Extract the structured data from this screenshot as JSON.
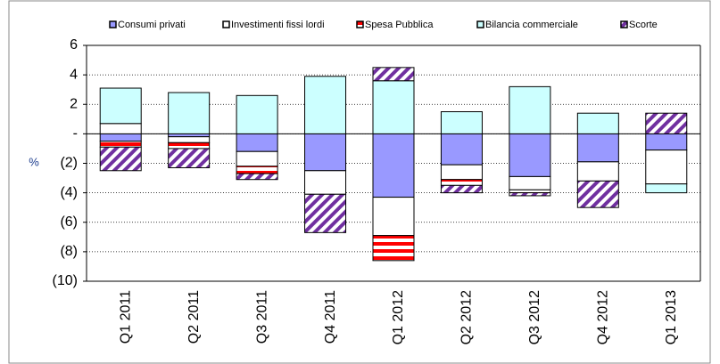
{
  "chart_data": {
    "type": "bar",
    "stacked": true,
    "y_label": "%",
    "categories": [
      "Q1 2011",
      "Q2 2011",
      "Q3 2011",
      "Q4 2011",
      "Q1 2012",
      "Q2 2012",
      "Q3 2012",
      "Q4 2012",
      "Q1 2013"
    ],
    "series": [
      {
        "name": "Consumi privati",
        "color": "#9999ff",
        "pattern": "solid",
        "values": [
          -0.5,
          -0.2,
          -1.2,
          -2.5,
          -4.3,
          -2.1,
          -2.9,
          -1.9,
          -1.1
        ]
      },
      {
        "name": "Investimenti fissi lordi",
        "color": "#ffffff",
        "pattern": "solid",
        "values": [
          0.7,
          -0.4,
          -1.0,
          -1.6,
          -2.6,
          -1.0,
          -0.9,
          -1.3,
          -2.3
        ]
      },
      {
        "name": "Spesa Pubblica",
        "color": "#ff0000",
        "pattern": "horizontal-stripes",
        "values": [
          -0.4,
          -0.4,
          -0.5,
          0,
          -1.7,
          -0.4,
          -0.2,
          0,
          0
        ]
      },
      {
        "name": "Bilancia commerciale",
        "color": "#ccffff",
        "pattern": "solid",
        "values": [
          2.4,
          2.8,
          2.6,
          3.9,
          3.6,
          1.5,
          3.2,
          1.4,
          -0.6
        ]
      },
      {
        "name": "Scorte",
        "color": "#7030a0",
        "pattern": "diagonal-stripes",
        "values": [
          -1.6,
          -1.3,
          -0.4,
          -2.6,
          0.9,
          -0.5,
          -0.2,
          -1.8,
          1.4
        ]
      }
    ],
    "ylim": [
      -10,
      6
    ],
    "yticks": [
      {
        "value": -10,
        "label": "(10)"
      },
      {
        "value": -8,
        "label": "(8)"
      },
      {
        "value": -6,
        "label": "(6)"
      },
      {
        "value": -4,
        "label": "(4)"
      },
      {
        "value": -2,
        "label": "(2)"
      },
      {
        "value": 0,
        "label": "-"
      },
      2,
      4,
      6
    ],
    "grid": true,
    "legend": "top"
  }
}
